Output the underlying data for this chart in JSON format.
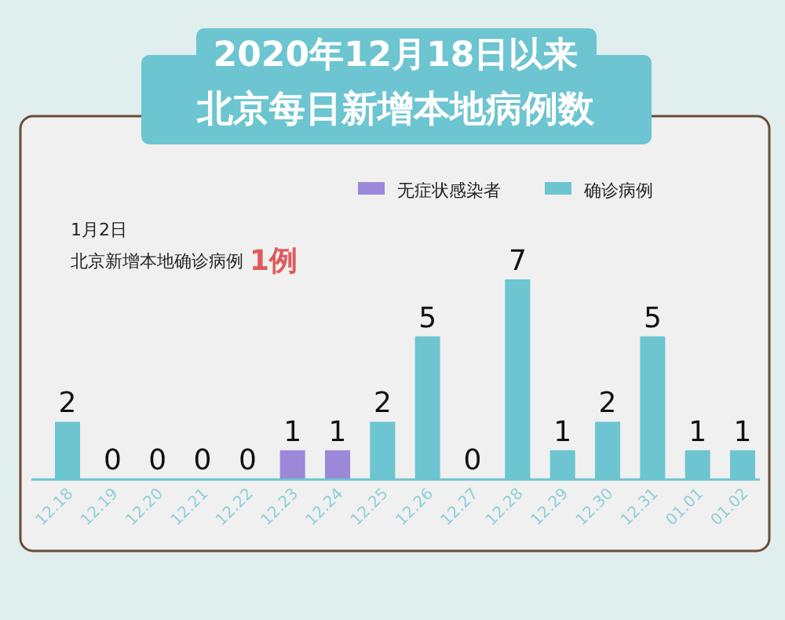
{
  "chart_data": {
    "type": "bar",
    "title": "2020年12月18日以来",
    "subtitle": "北京每日新增本地病例数",
    "categories": [
      "12.18",
      "12.19",
      "12.20",
      "12.21",
      "12.22",
      "12.23",
      "12.24",
      "12.25",
      "12.26",
      "12.27",
      "12.28",
      "12.29",
      "12.30",
      "12.31",
      "01.01",
      "01.02"
    ],
    "stacked": true,
    "legend": "top right",
    "series": [
      {
        "name": "无症状感染者",
        "color": "#9b88d8",
        "values": [
          null,
          null,
          null,
          null,
          null,
          1,
          1,
          null,
          null,
          null,
          null,
          null,
          null,
          null,
          null,
          null
        ],
        "value_labels": [
          null,
          null,
          null,
          null,
          null,
          "1",
          "1",
          null,
          null,
          null,
          null,
          null,
          null,
          null,
          null,
          null
        ]
      },
      {
        "name": "确诊病例",
        "color": "#6cc5d0",
        "values": [
          2,
          0,
          0,
          0,
          0,
          null,
          null,
          2,
          5,
          0,
          7,
          1,
          2,
          5,
          1,
          1
        ],
        "value_labels": [
          "2",
          "0",
          "0",
          "0",
          "0",
          null,
          null,
          "2",
          "5",
          "0",
          "7",
          "1",
          "2",
          "5",
          "1",
          "1"
        ]
      }
    ],
    "annotations": [
      "1月2日",
      "北京新增本地确诊病例",
      "1例"
    ]
  }
}
